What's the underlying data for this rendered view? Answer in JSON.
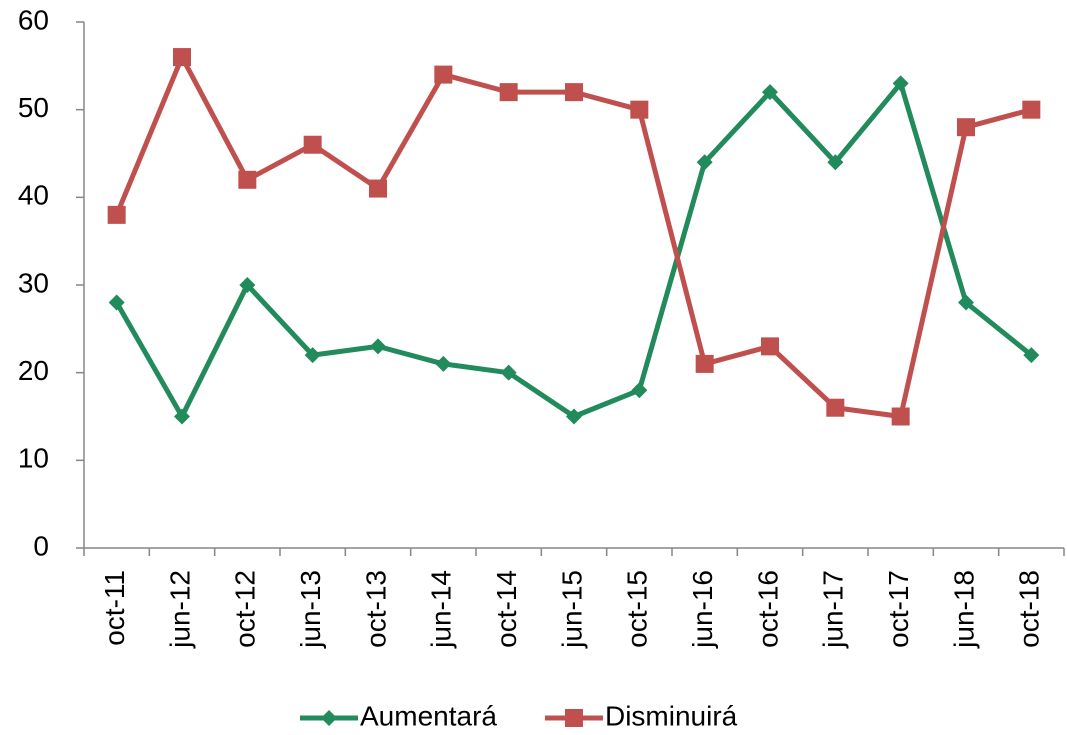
{
  "chart_data": {
    "type": "line",
    "categories": [
      "oct-11",
      "jun-12",
      "oct-12",
      "jun-13",
      "oct-13",
      "jun-14",
      "oct-14",
      "jun-15",
      "oct-15",
      "jun-16",
      "oct-16",
      "jun-17",
      "oct-17",
      "jun-18",
      "oct-18"
    ],
    "series": [
      {
        "name": "Aumentará",
        "color": "#228b5c",
        "marker": "diamond",
        "values": [
          28,
          15,
          30,
          22,
          23,
          21,
          20,
          15,
          18,
          44,
          52,
          44,
          53,
          28,
          22
        ]
      },
      {
        "name": "Disminuirá",
        "color": "#c0504d",
        "marker": "square",
        "values": [
          38,
          56,
          42,
          46,
          41,
          54,
          52,
          52,
          50,
          21,
          23,
          16,
          15,
          48,
          50
        ]
      }
    ],
    "ylim": [
      0,
      60
    ],
    "yticks": [
      0,
      10,
      20,
      30,
      40,
      50,
      60
    ],
    "grid": false,
    "legend": "bottom"
  }
}
